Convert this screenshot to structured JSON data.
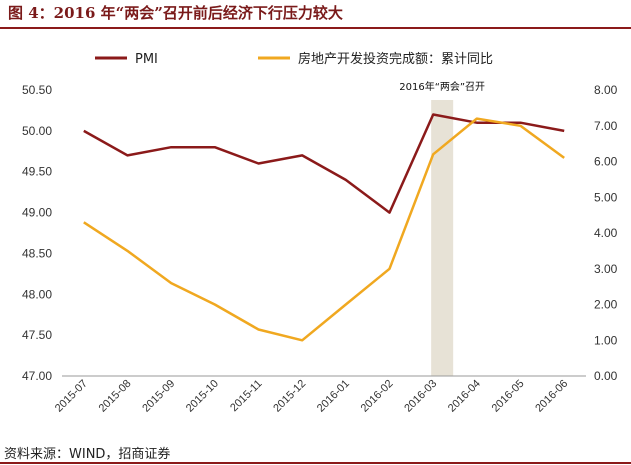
{
  "header": {
    "title": "图 4：2016 年“两会”召开前后经济下行压力较大"
  },
  "footer": {
    "source": "资料来源：WIND，招商证券"
  },
  "colors": {
    "pmi": "#8b1a1a",
    "realestate": "#f0a820",
    "band": "#e7e2d6",
    "accent": "#8b1a1a"
  },
  "chart_data": {
    "type": "line",
    "title": "",
    "categories": [
      "2015-07",
      "2015-08",
      "2015-09",
      "2015-10",
      "2015-11",
      "2015-12",
      "2016-01",
      "2016-02",
      "2016-03",
      "2016-04",
      "2016-05",
      "2016-06"
    ],
    "series": [
      {
        "name": "PMI",
        "axis": "left",
        "values": [
          50.0,
          49.7,
          49.8,
          49.8,
          49.6,
          49.7,
          49.4,
          49.0,
          50.2,
          50.1,
          50.1,
          50.0
        ]
      },
      {
        "name": "房地产开发投资完成额：累计同比",
        "axis": "right",
        "values": [
          4.3,
          3.5,
          2.6,
          2.0,
          1.3,
          1.0,
          2.0,
          3.0,
          6.2,
          7.2,
          7.0,
          6.1
        ]
      }
    ],
    "y_left": {
      "ylim": [
        47.0,
        50.5
      ],
      "ticks": [
        "47.00",
        "47.50",
        "48.00",
        "48.50",
        "49.00",
        "49.50",
        "50.00",
        "50.50"
      ]
    },
    "y_right": {
      "ylim": [
        0.0,
        8.0
      ],
      "ticks": [
        "0.00",
        "1.00",
        "2.00",
        "3.00",
        "4.00",
        "5.00",
        "6.00",
        "7.00",
        "8.00"
      ]
    },
    "annotation": {
      "label": "2016年“两会”召开",
      "category": "2016-03"
    },
    "legend": {
      "position": "top"
    },
    "grid": false
  }
}
